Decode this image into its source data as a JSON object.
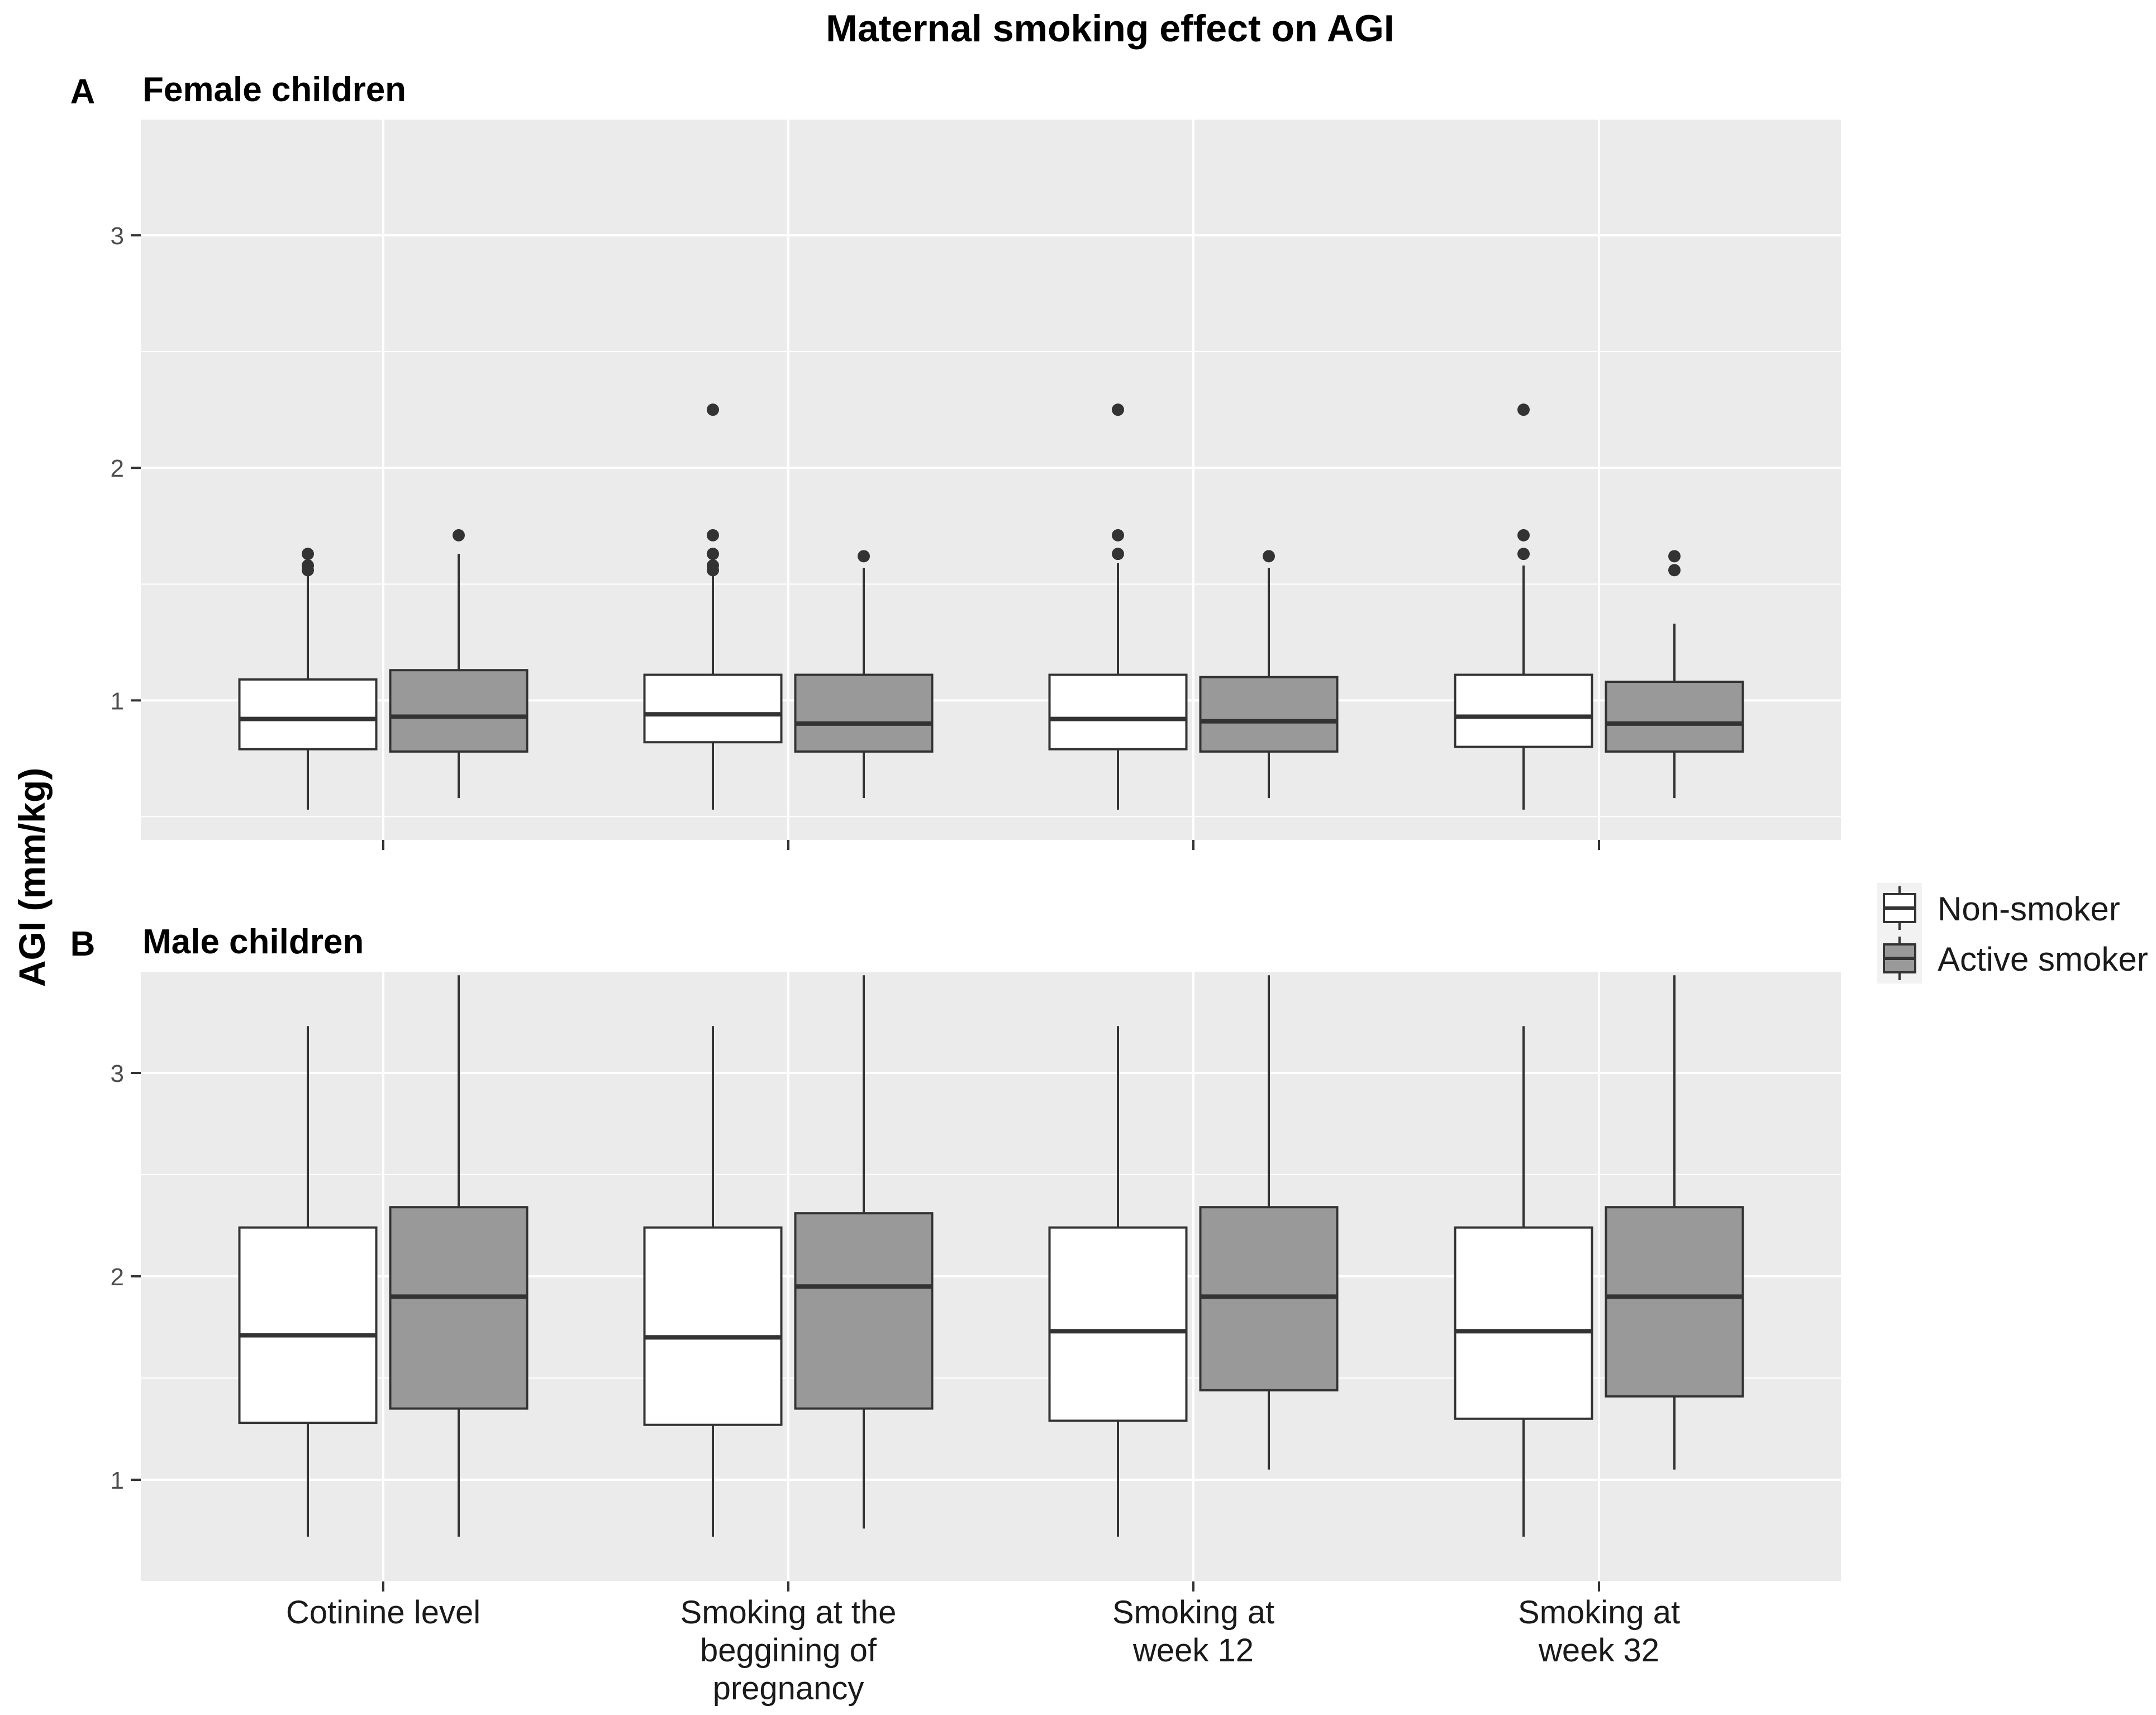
{
  "chart_data": {
    "type": "boxplot",
    "title": "Maternal smoking effect on AGI",
    "ylabel": "AGI (mm/kg)",
    "xlabel": "",
    "ylim": [
      0.35,
      3.45
    ],
    "grid": true,
    "legend_position": "right",
    "categories": [
      [
        "Cotinine level"
      ],
      [
        "Smoking at the",
        "beggining of",
        "pregnancy"
      ],
      [
        "Smoking at",
        "week 12"
      ],
      [
        "Smoking at",
        "week 32"
      ]
    ],
    "legend": [
      {
        "name": "Non-smoker",
        "color": "#ffffff"
      },
      {
        "name": "Active smoker",
        "color": "#999999"
      }
    ],
    "panels": [
      {
        "tag": "A",
        "title": "Female children",
        "yticks": [
          1,
          2,
          3
        ],
        "yrange": [
          0.4,
          3.5
        ],
        "groups": [
          {
            "category_index": 0,
            "boxes": [
              {
                "series": "Non-smoker",
                "whisker_low": 0.53,
                "q1": 0.79,
                "median": 0.92,
                "q3": 1.09,
                "whisker_high": 1.54,
                "outliers": [
                  1.56,
                  1.58,
                  1.63
                ]
              },
              {
                "series": "Active smoker",
                "whisker_low": 0.58,
                "q1": 0.78,
                "median": 0.93,
                "q3": 1.13,
                "whisker_high": 1.63,
                "outliers": [
                  1.71
                ]
              }
            ]
          },
          {
            "category_index": 1,
            "boxes": [
              {
                "series": "Non-smoker",
                "whisker_low": 0.53,
                "q1": 0.82,
                "median": 0.94,
                "q3": 1.11,
                "whisker_high": 1.54,
                "outliers": [
                  1.56,
                  1.58,
                  1.63,
                  1.71,
                  2.25
                ]
              },
              {
                "series": "Active smoker",
                "whisker_low": 0.58,
                "q1": 0.78,
                "median": 0.9,
                "q3": 1.11,
                "whisker_high": 1.57,
                "outliers": [
                  1.62
                ]
              }
            ]
          },
          {
            "category_index": 2,
            "boxes": [
              {
                "series": "Non-smoker",
                "whisker_low": 0.53,
                "q1": 0.79,
                "median": 0.92,
                "q3": 1.11,
                "whisker_high": 1.59,
                "outliers": [
                  1.63,
                  1.71,
                  2.25
                ]
              },
              {
                "series": "Active smoker",
                "whisker_low": 0.58,
                "q1": 0.78,
                "median": 0.91,
                "q3": 1.1,
                "whisker_high": 1.57,
                "outliers": [
                  1.62
                ]
              }
            ]
          },
          {
            "category_index": 3,
            "boxes": [
              {
                "series": "Non-smoker",
                "whisker_low": 0.53,
                "q1": 0.8,
                "median": 0.93,
                "q3": 1.11,
                "whisker_high": 1.58,
                "outliers": [
                  1.63,
                  1.71,
                  2.25
                ]
              },
              {
                "series": "Active smoker",
                "whisker_low": 0.58,
                "q1": 0.78,
                "median": 0.9,
                "q3": 1.08,
                "whisker_high": 1.33,
                "outliers": [
                  1.56,
                  1.62
                ]
              }
            ]
          }
        ]
      },
      {
        "tag": "B",
        "title": "Male children",
        "yticks": [
          1,
          2,
          3
        ],
        "yrange": [
          0.5,
          3.5
        ],
        "groups": [
          {
            "category_index": 0,
            "boxes": [
              {
                "series": "Non-smoker",
                "whisker_low": 0.72,
                "q1": 1.28,
                "median": 1.71,
                "q3": 2.24,
                "whisker_high": 3.23,
                "outliers": []
              },
              {
                "series": "Active smoker",
                "whisker_low": 0.72,
                "q1": 1.35,
                "median": 1.9,
                "q3": 2.34,
                "whisker_high": 3.48,
                "outliers": []
              }
            ]
          },
          {
            "category_index": 1,
            "boxes": [
              {
                "series": "Non-smoker",
                "whisker_low": 0.72,
                "q1": 1.27,
                "median": 1.7,
                "q3": 2.24,
                "whisker_high": 3.23,
                "outliers": []
              },
              {
                "series": "Active smoker",
                "whisker_low": 0.76,
                "q1": 1.35,
                "median": 1.95,
                "q3": 2.31,
                "whisker_high": 3.48,
                "outliers": []
              }
            ]
          },
          {
            "category_index": 2,
            "boxes": [
              {
                "series": "Non-smoker",
                "whisker_low": 0.72,
                "q1": 1.29,
                "median": 1.73,
                "q3": 2.24,
                "whisker_high": 3.23,
                "outliers": []
              },
              {
                "series": "Active smoker",
                "whisker_low": 1.05,
                "q1": 1.44,
                "median": 1.9,
                "q3": 2.34,
                "whisker_high": 3.48,
                "outliers": []
              }
            ]
          },
          {
            "category_index": 3,
            "boxes": [
              {
                "series": "Non-smoker",
                "whisker_low": 0.72,
                "q1": 1.3,
                "median": 1.73,
                "q3": 2.24,
                "whisker_high": 3.23,
                "outliers": []
              },
              {
                "series": "Active smoker",
                "whisker_low": 1.05,
                "q1": 1.41,
                "median": 1.9,
                "q3": 2.34,
                "whisker_high": 3.48,
                "outliers": []
              }
            ]
          }
        ]
      }
    ]
  }
}
